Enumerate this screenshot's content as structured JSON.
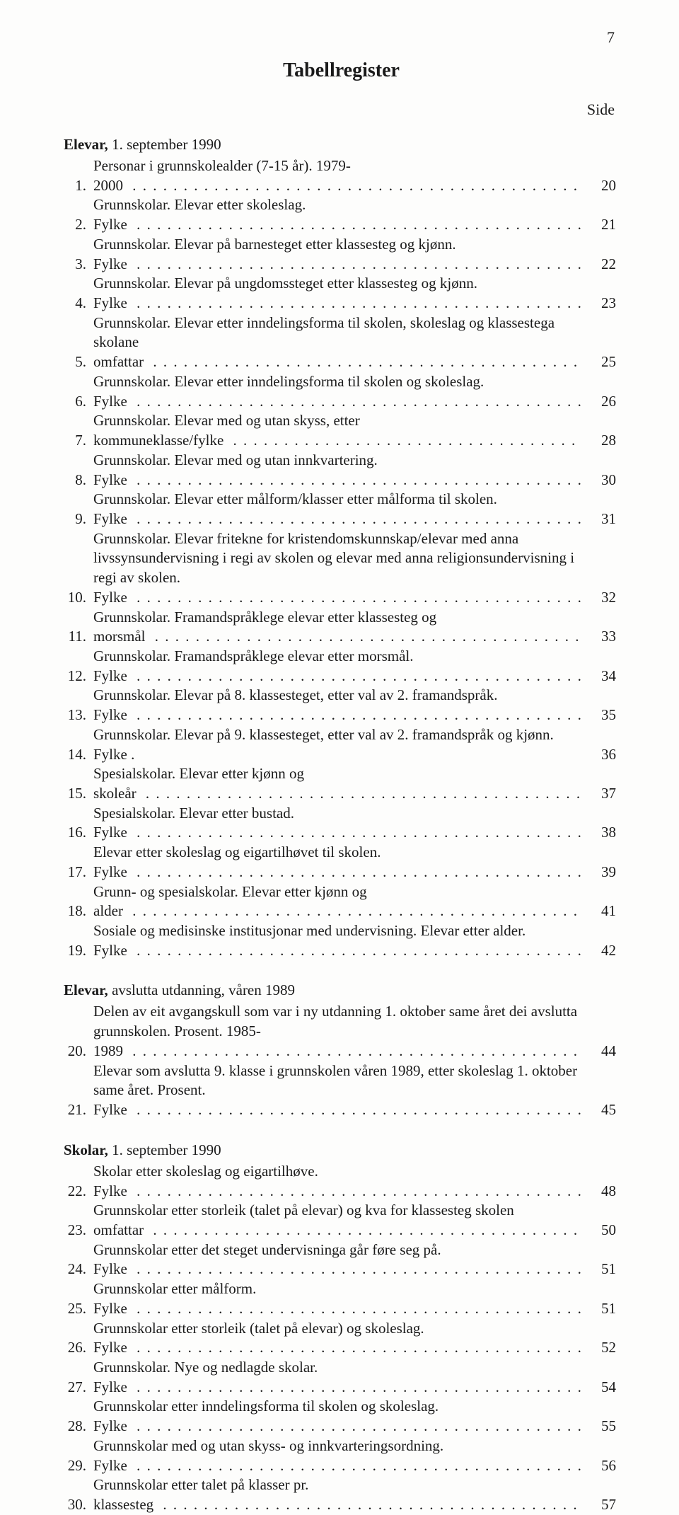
{
  "page_number": "7",
  "title": "Tabellregister",
  "side_label": "Side",
  "sections": [
    {
      "heading_bold": "Elevar,",
      "heading_rest": " 1. september 1990",
      "items": [
        {
          "n": "1.",
          "text": "Personar i grunnskolealder (7-15 år). 1979-2000",
          "page": "20"
        },
        {
          "n": "2.",
          "text": "Grunnskolar. Elevar etter skoleslag. Fylke",
          "page": "21"
        },
        {
          "n": "3.",
          "text": "Grunnskolar. Elevar på barnesteget etter klassesteg og kjønn. Fylke",
          "page": "22"
        },
        {
          "n": "4.",
          "text": "Grunnskolar. Elevar på ungdomssteget etter klassesteg og kjønn. Fylke",
          "page": "23"
        },
        {
          "n": "5.",
          "text": "Grunnskolar. Elevar etter inndelingsforma til skolen, skoleslag og klassestega skolane omfattar",
          "page": "25",
          "wrap": true
        },
        {
          "n": "6.",
          "text": "Grunnskolar. Elevar etter inndelingsforma til skolen og skoleslag. Fylke",
          "page": "26"
        },
        {
          "n": "7.",
          "text": "Grunnskolar. Elevar med og utan skyss, etter kommuneklasse/fylke",
          "page": "28"
        },
        {
          "n": "8.",
          "text": "Grunnskolar. Elevar med og utan innkvartering. Fylke",
          "page": "30"
        },
        {
          "n": "9.",
          "text": "Grunnskolar. Elevar etter målform/klasser etter målforma til skolen. Fylke",
          "page": "31"
        },
        {
          "n": "10.",
          "text": "Grunnskolar. Elevar fritekne for kristendomskunnskap/elevar med anna livssynsundervisning i regi av skolen og elevar med anna religionsundervisning i regi av skolen. Fylke",
          "page": "32",
          "wrap": true
        },
        {
          "n": "11.",
          "text": "Grunnskolar. Framandspråklege elevar etter klassesteg og morsmål",
          "page": "33"
        },
        {
          "n": "12.",
          "text": "Grunnskolar. Framandspråklege elevar etter morsmål. Fylke",
          "page": "34"
        },
        {
          "n": "13.",
          "text": "Grunnskolar. Elevar på 8. klassesteget, etter val av 2. framandspråk. Fylke",
          "page": "35"
        },
        {
          "n": "14.",
          "text": "Grunnskolar. Elevar på 9. klassesteget, etter val av 2. framandspråk og kjønn. Fylke .",
          "page": "36",
          "nodots": true
        },
        {
          "n": "15.",
          "text": "Spesialskolar. Elevar etter kjønn og skoleår",
          "page": "37"
        },
        {
          "n": "16.",
          "text": "Spesialskolar. Elevar etter bustad. Fylke",
          "page": "38"
        },
        {
          "n": "17.",
          "text": "Elevar etter skoleslag og eigartilhøvet til skolen. Fylke",
          "page": "39"
        },
        {
          "n": "18.",
          "text": "Grunn- og spesialskolar. Elevar etter kjønn og alder",
          "page": "41"
        },
        {
          "n": "19.",
          "text": "Sosiale og medisinske institusjonar med undervisning. Elevar etter alder. Fylke",
          "page": "42"
        }
      ]
    },
    {
      "heading_bold": "Elevar,",
      "heading_rest": " avslutta utdanning, våren 1989",
      "items": [
        {
          "n": "20.",
          "text": "Delen av eit avgangskull som var i ny utdanning 1. oktober same året dei avslutta grunnskolen. Prosent. 1985-1989",
          "page": "44",
          "wrap": true
        },
        {
          "n": "21.",
          "text": "Elevar som avslutta 9. klasse i grunnskolen våren 1989, etter skoleslag 1. oktober same året. Prosent. Fylke",
          "page": "45",
          "wrap": true
        }
      ]
    },
    {
      "heading_bold": "Skolar,",
      "heading_rest": " 1. september 1990",
      "items": [
        {
          "n": "22.",
          "text": "Skolar etter skoleslag og eigartilhøve. Fylke",
          "page": "48"
        },
        {
          "n": "23.",
          "text": "Grunnskolar etter storleik (talet på elevar) og kva for klassesteg skolen omfattar",
          "page": "50"
        },
        {
          "n": "24.",
          "text": "Grunnskolar etter det steget undervisninga går føre seg på. Fylke",
          "page": "51"
        },
        {
          "n": "25.",
          "text": "Grunnskolar etter målform. Fylke",
          "page": "51"
        },
        {
          "n": "26.",
          "text": "Grunnskolar etter storleik (talet på elevar) og skoleslag. Fylke",
          "page": "52"
        },
        {
          "n": "27.",
          "text": "Grunnskolar. Nye og nedlagde skolar. Fylke",
          "page": "54"
        },
        {
          "n": "28.",
          "text": "Grunnskolar etter inndelingsforma til skolen og skoleslag. Fylke",
          "page": "55"
        },
        {
          "n": "29.",
          "text": "Grunnskolar med og utan skyss- og innkvarteringsordning. Fylke",
          "page": "56"
        },
        {
          "n": "30.",
          "text": "Grunnskolar etter talet på klasser pr. klassesteg",
          "page": "57"
        }
      ]
    }
  ]
}
